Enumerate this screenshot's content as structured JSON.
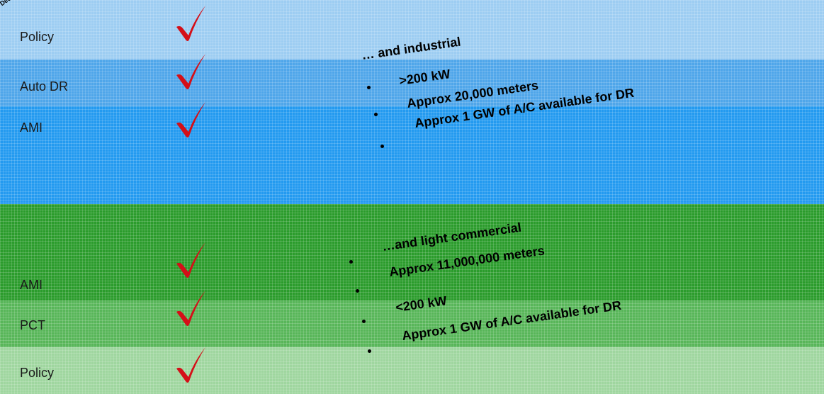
{
  "corner_text": "Dec",
  "top": {
    "rows": [
      {
        "label": "Policy"
      },
      {
        "label": "Auto DR"
      },
      {
        "label": "AMI"
      }
    ],
    "lines": [
      "… and industrial",
      ">200 kW",
      "Approx 20,000 meters",
      "Approx 1 GW of A/C available for DR"
    ]
  },
  "bottom": {
    "rows": [
      {
        "label": "AMI"
      },
      {
        "label": "PCT"
      },
      {
        "label": "Policy"
      }
    ],
    "lines": [
      "…and light commercial",
      "Approx 11,000,000 meters",
      "<200 kW",
      "Approx 1 GW of A/C available for DR"
    ]
  },
  "colors": {
    "top_band_light": "#9dcdf2",
    "top_band_mid": "#4fa6ea",
    "top_band_dark": "#239af0",
    "bottom_band_dark": "#2b9c2c",
    "bottom_band_mid": "#58b659",
    "bottom_band_light": "#9fd69f",
    "check_red": "#d40f18"
  }
}
